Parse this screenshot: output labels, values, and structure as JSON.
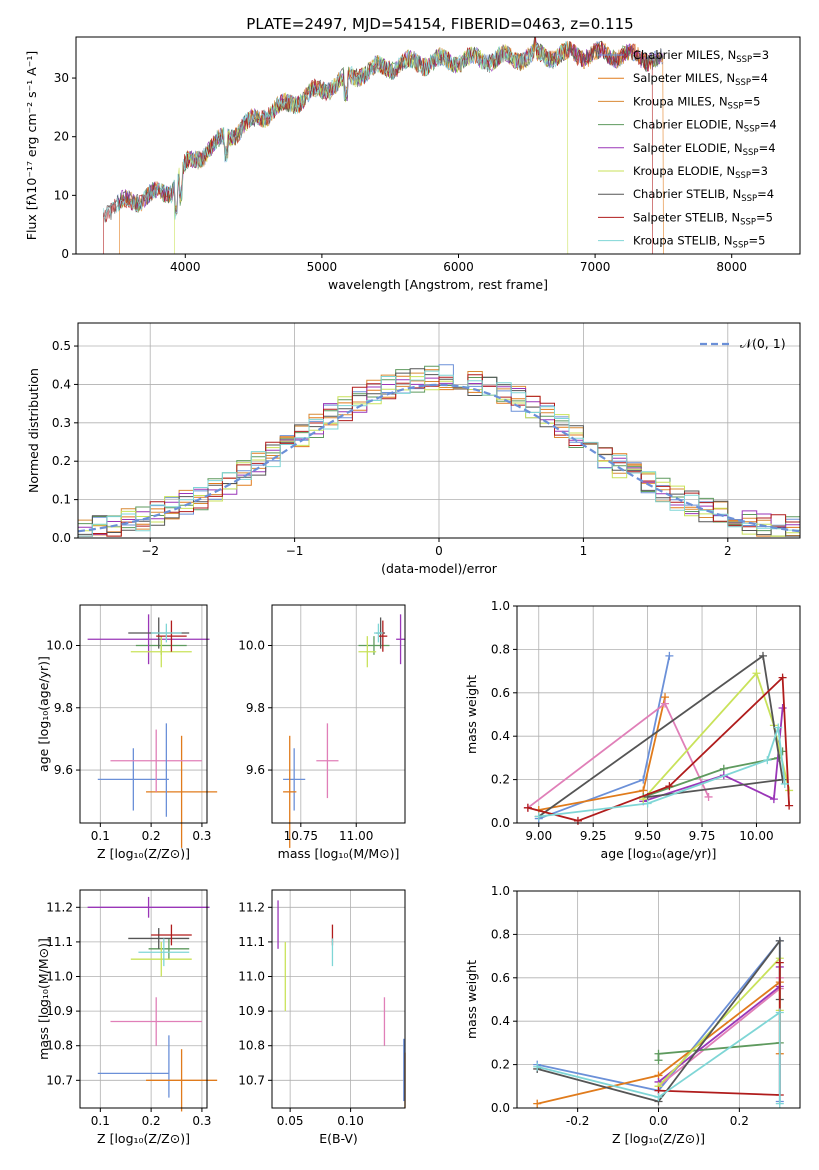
{
  "title": "PLATE=2497, MJD=54154, FIBERID=0463, z=0.115",
  "models": [
    {
      "name": "Chabrier MILES",
      "nssp": "3",
      "color": "#6b90d8"
    },
    {
      "name": "Salpeter MILES",
      "nssp": "4",
      "color": "#e07b1c"
    },
    {
      "name": "Kroupa MILES",
      "nssp": "5",
      "color": "#d98a35"
    },
    {
      "name": "Chabrier ELODIE",
      "nssp": "4",
      "color": "#5e9a5e"
    },
    {
      "name": "Salpeter ELODIE",
      "nssp": "4",
      "color": "#9a36b8"
    },
    {
      "name": "Kroupa ELODIE",
      "nssp": "3",
      "color": "#c9e25a"
    },
    {
      "name": "Chabrier STELIB",
      "nssp": "4",
      "color": "#555555"
    },
    {
      "name": "Salpeter STELIB",
      "nssp": "5",
      "color": "#b01c1c"
    },
    {
      "name": "Kroupa STELIB",
      "nssp": "5",
      "color": "#7fd6d6"
    }
  ],
  "extra_colors": {
    "pink": "#e07fb8",
    "gauss": "#6b90d8"
  },
  "chart_data": [
    {
      "id": "spectrum",
      "type": "line",
      "xlabel": "wavelength [Angstrom, rest frame]",
      "ylabel": "Flux [fλ10⁻¹⁷ erg cm⁻² s⁻¹ A⁻¹]",
      "xlim": [
        3200,
        8500
      ],
      "ylim": [
        0,
        37
      ],
      "xticks": [
        4000,
        5000,
        6000,
        7000,
        8000
      ],
      "yticks": [
        0,
        10,
        20,
        30
      ],
      "continuum": {
        "x": [
          3400,
          3600,
          3900,
          4000,
          4300,
          4600,
          5000,
          5300,
          5600,
          6000,
          6400,
          6800,
          7200,
          7500
        ],
        "y": [
          7.5,
          9,
          11,
          15,
          20,
          24,
          28,
          31,
          32.5,
          33,
          33.5,
          34,
          34,
          33
        ]
      }
    },
    {
      "id": "residuals",
      "type": "histogram",
      "xlabel": "(data-model)/error",
      "ylabel": "Normed distribution",
      "xlim": [
        -2.5,
        2.5
      ],
      "ylim": [
        0,
        0.56
      ],
      "xticks": [
        -2,
        -1,
        0,
        1,
        2
      ],
      "yticks": [
        0.0,
        0.1,
        0.2,
        0.3,
        0.4,
        0.5
      ],
      "legend": "𝒩(0, 1)",
      "bin_width": 0.1
    },
    {
      "id": "age_vs_z",
      "type": "scatter",
      "xlabel": "Z [log₁₀(Z/Z⊙)]",
      "ylabel": "age  [log₁₀(age/yr)]",
      "xlim": [
        0.06,
        0.31
      ],
      "ylim": [
        9.43,
        10.13
      ],
      "xticks": [
        0.1,
        0.2,
        0.3
      ],
      "yticks": [
        9.6,
        9.8,
        10.0
      ],
      "points": [
        {
          "c": 0,
          "x": 0.165,
          "y": 9.57,
          "ex": 0.07,
          "ey": 0.1
        },
        {
          "c": 1,
          "x": 0.26,
          "y": 9.53,
          "ex": 0.07,
          "ey": 0.18
        },
        {
          "c": "pink",
          "x": 0.21,
          "y": 9.63,
          "ex": 0.09,
          "ey": 0.1
        },
        {
          "c": 0,
          "x": 0.23,
          "y": 9.6,
          "ex": 0.0,
          "ey": 0.15
        },
        {
          "c": 3,
          "x": 0.22,
          "y": 10.0,
          "ex": 0.05,
          "ey": 0.03
        },
        {
          "c": 4,
          "x": 0.195,
          "y": 10.02,
          "ex": 0.12,
          "ey": 0.08
        },
        {
          "c": 5,
          "x": 0.22,
          "y": 9.98,
          "ex": 0.06,
          "ey": 0.05
        },
        {
          "c": 6,
          "x": 0.215,
          "y": 10.04,
          "ex": 0.06,
          "ey": 0.05
        },
        {
          "c": 7,
          "x": 0.24,
          "y": 10.03,
          "ex": 0.03,
          "ey": 0.05
        },
        {
          "c": 8,
          "x": 0.23,
          "y": 10.04,
          "ex": 0.03,
          "ey": 0.03
        }
      ]
    },
    {
      "id": "age_vs_mass",
      "type": "scatter",
      "xlabel": "mass [log₁₀(M/M⊙)]",
      "ylabel": "",
      "xlim": [
        10.62,
        11.22
      ],
      "ylim": [
        9.43,
        10.13
      ],
      "xticks": [
        10.75,
        11.0
      ],
      "yticks": [
        9.6,
        9.8,
        10.0
      ],
      "points": [
        {
          "c": 0,
          "x": 10.72,
          "y": 9.57,
          "ex": 0.05,
          "ey": 0.1
        },
        {
          "c": 1,
          "x": 10.7,
          "y": 9.53,
          "ex": 0.03,
          "ey": 0.18
        },
        {
          "c": "pink",
          "x": 10.87,
          "y": 9.63,
          "ex": 0.05,
          "ey": 0.12
        },
        {
          "c": 3,
          "x": 11.08,
          "y": 10.0,
          "ex": 0.07,
          "ey": 0.03
        },
        {
          "c": 4,
          "x": 11.2,
          "y": 10.02,
          "ex": 0.02,
          "ey": 0.08
        },
        {
          "c": 5,
          "x": 11.05,
          "y": 9.98,
          "ex": 0.04,
          "ey": 0.05
        },
        {
          "c": 6,
          "x": 11.11,
          "y": 10.04,
          "ex": 0.02,
          "ey": 0.05
        },
        {
          "c": 7,
          "x": 11.12,
          "y": 10.03,
          "ex": 0.02,
          "ey": 0.05
        },
        {
          "c": 8,
          "x": 11.1,
          "y": 10.04,
          "ex": 0.02,
          "ey": 0.03
        }
      ]
    },
    {
      "id": "weight_vs_age",
      "type": "line",
      "xlabel": "age  [log₁₀(age/yr)]",
      "ylabel": "mass weight",
      "xlim": [
        8.9,
        10.2
      ],
      "ylim": [
        0.0,
        1.0
      ],
      "xticks": [
        9.0,
        9.25,
        9.5,
        9.75,
        10.0
      ],
      "yticks": [
        0.0,
        0.2,
        0.4,
        0.6,
        0.8,
        1.0
      ],
      "series": [
        {
          "c": 0,
          "x": [
            9.0,
            9.48,
            9.6
          ],
          "y": [
            0.02,
            0.2,
            0.77
          ]
        },
        {
          "c": 1,
          "x": [
            9.0,
            9.48,
            9.58
          ],
          "y": [
            0.06,
            0.15,
            0.58
          ]
        },
        {
          "c": "pink",
          "x": [
            8.95,
            9.58,
            9.78
          ],
          "y": [
            0.07,
            0.55,
            0.12
          ]
        },
        {
          "c": 3,
          "x": [
            9.48,
            9.85,
            10.1,
            10.12
          ],
          "y": [
            0.12,
            0.25,
            0.3,
            0.33
          ]
        },
        {
          "c": 4,
          "x": [
            9.48,
            9.85,
            10.08,
            10.12
          ],
          "y": [
            0.1,
            0.22,
            0.11,
            0.53
          ]
        },
        {
          "c": 5,
          "x": [
            9.48,
            10.0,
            10.08,
            10.15
          ],
          "y": [
            0.11,
            0.69,
            0.45,
            0.15
          ]
        },
        {
          "c": 6,
          "x": [
            9.0,
            10.03,
            10.12,
            9.5
          ],
          "y": [
            0.03,
            0.77,
            0.2,
            0.12
          ]
        },
        {
          "c": 7,
          "x": [
            8.95,
            9.18,
            9.6,
            10.12,
            10.15
          ],
          "y": [
            0.07,
            0.01,
            0.17,
            0.67,
            0.08
          ]
        },
        {
          "c": 8,
          "x": [
            9.0,
            9.5,
            10.05,
            10.1,
            10.13
          ],
          "y": [
            0.03,
            0.09,
            0.29,
            0.44,
            0.18
          ]
        }
      ]
    },
    {
      "id": "mass_vs_z",
      "type": "scatter",
      "xlabel": "Z [log₁₀(Z/Z⊙)]",
      "ylabel": "mass [log₁₀(M/M⊙)]",
      "xlim": [
        0.06,
        0.31
      ],
      "ylim": [
        10.62,
        11.25
      ],
      "xticks": [
        0.1,
        0.2,
        0.3
      ],
      "yticks": [
        10.7,
        10.8,
        10.9,
        11.0,
        11.1,
        11.2
      ],
      "points": [
        {
          "c": 0,
          "x": 0.165,
          "y": 10.72,
          "ex": 0.07,
          "ey": 0.0
        },
        {
          "c": 0,
          "x": 0.235,
          "y": 10.74,
          "ex": 0.0,
          "ey": 0.09
        },
        {
          "c": 1,
          "x": 0.26,
          "y": 10.7,
          "ex": 0.07,
          "ey": 0.09
        },
        {
          "c": "pink",
          "x": 0.21,
          "y": 10.87,
          "ex": 0.09,
          "ey": 0.07
        },
        {
          "c": 3,
          "x": 0.235,
          "y": 11.08,
          "ex": 0.04,
          "ey": 0.03
        },
        {
          "c": 4,
          "x": 0.195,
          "y": 11.2,
          "ex": 0.12,
          "ey": 0.03
        },
        {
          "c": 5,
          "x": 0.22,
          "y": 11.05,
          "ex": 0.06,
          "ey": 0.05
        },
        {
          "c": 6,
          "x": 0.215,
          "y": 11.11,
          "ex": 0.06,
          "ey": 0.03
        },
        {
          "c": 7,
          "x": 0.24,
          "y": 11.12,
          "ex": 0.04,
          "ey": 0.03
        },
        {
          "c": 8,
          "x": 0.225,
          "y": 11.07,
          "ex": 0.05,
          "ey": 0.04
        }
      ]
    },
    {
      "id": "mass_vs_ebv",
      "type": "scatter",
      "xlabel": "E(B-V)",
      "ylabel": "",
      "xlim": [
        0.035,
        0.145
      ],
      "ylim": [
        10.62,
        11.25
      ],
      "xticks": [
        0.05,
        0.1
      ],
      "yticks": [
        10.7,
        10.8,
        10.9,
        11.0,
        11.1,
        11.2
      ],
      "points": [
        {
          "c": 0,
          "x": 0.144,
          "y": 10.73,
          "ex": 0.0,
          "ey": 0.09
        },
        {
          "c": 1,
          "x": 0.145,
          "y": 10.7,
          "ex": 0.0,
          "ey": 0.08
        },
        {
          "c": "pink",
          "x": 0.128,
          "y": 10.87,
          "ex": 0.0,
          "ey": 0.07
        },
        {
          "c": 4,
          "x": 0.04,
          "y": 11.15,
          "ex": 0.0,
          "ey": 0.07
        },
        {
          "c": 5,
          "x": 0.046,
          "y": 11.0,
          "ex": 0.0,
          "ey": 0.1
        },
        {
          "c": 7,
          "x": 0.085,
          "y": 11.12,
          "ex": 0.0,
          "ey": 0.03
        },
        {
          "c": 8,
          "x": 0.085,
          "y": 11.07,
          "ex": 0.0,
          "ey": 0.04
        }
      ]
    },
    {
      "id": "weight_vs_z",
      "type": "line",
      "xlabel": "Z [log₁₀(Z/Z⊙)]",
      "ylabel": "mass weight",
      "xlim": [
        -0.35,
        0.35
      ],
      "ylim": [
        0.0,
        1.0
      ],
      "xticks": [
        -0.2,
        0.0,
        0.2
      ],
      "yticks": [
        0.0,
        0.2,
        0.4,
        0.6,
        0.8,
        1.0
      ],
      "series": [
        {
          "c": 0,
          "x": [
            -0.3,
            0.0,
            0.3,
            0.3
          ],
          "y": [
            0.2,
            0.08,
            0.77,
            0.03
          ]
        },
        {
          "c": 1,
          "x": [
            -0.3,
            0.0,
            0.3,
            0.3
          ],
          "y": [
            0.02,
            0.15,
            0.58,
            0.25
          ]
        },
        {
          "c": "pink",
          "x": [
            0.0,
            0.3,
            0.3
          ],
          "y": [
            0.1,
            0.55,
            0.6
          ]
        },
        {
          "c": 3,
          "x": [
            0.0,
            0.0,
            0.3
          ],
          "y": [
            0.22,
            0.25,
            0.3
          ]
        },
        {
          "c": 4,
          "x": [
            0.0,
            0.3,
            0.3
          ],
          "y": [
            0.12,
            0.56,
            0.65
          ]
        },
        {
          "c": 5,
          "x": [
            0.0,
            0.3,
            0.3
          ],
          "y": [
            0.1,
            0.69,
            0.45
          ]
        },
        {
          "c": 6,
          "x": [
            -0.3,
            0.0,
            0.3,
            0.3
          ],
          "y": [
            0.18,
            0.03,
            0.77,
            0.5
          ]
        },
        {
          "c": 7,
          "x": [
            0.0,
            0.3,
            0.3
          ],
          "y": [
            0.08,
            0.06,
            0.67
          ]
        },
        {
          "c": 8,
          "x": [
            -0.3,
            0.0,
            0.3,
            0.3
          ],
          "y": [
            0.19,
            0.05,
            0.44,
            0.02
          ]
        }
      ]
    }
  ]
}
